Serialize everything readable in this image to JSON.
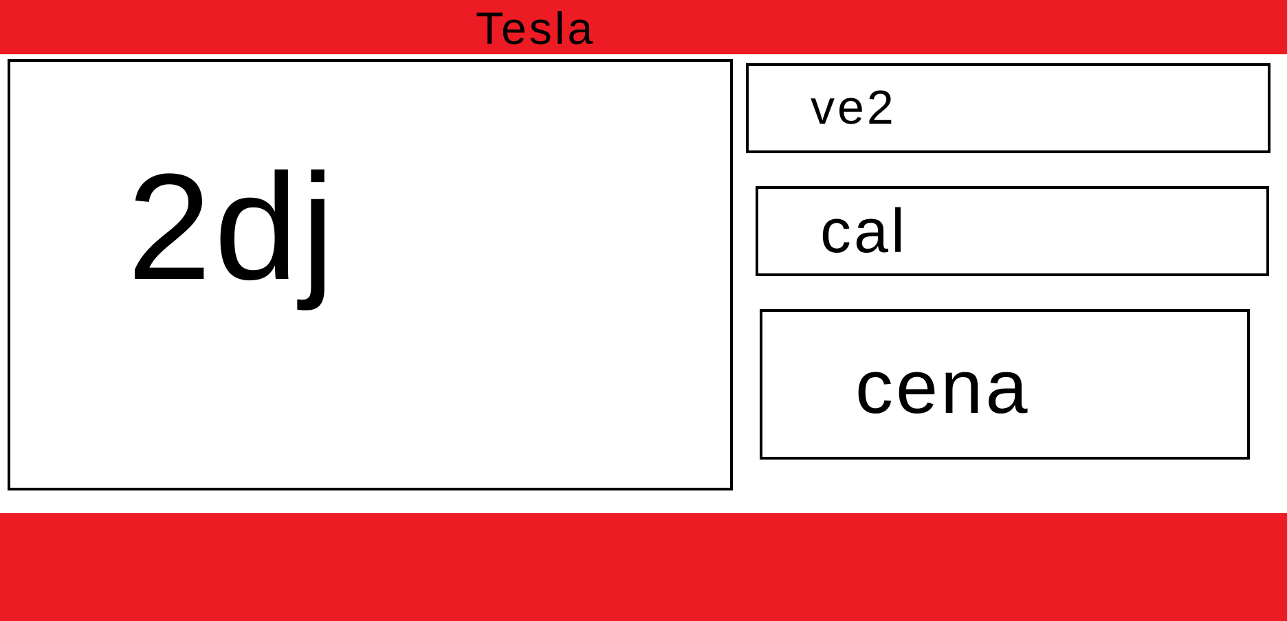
{
  "header": {
    "title": "Tesla"
  },
  "main_panel": {
    "label": "2dj"
  },
  "side_panels": [
    {
      "label": "ve2"
    },
    {
      "label": "cal"
    },
    {
      "label": "cena"
    }
  ]
}
